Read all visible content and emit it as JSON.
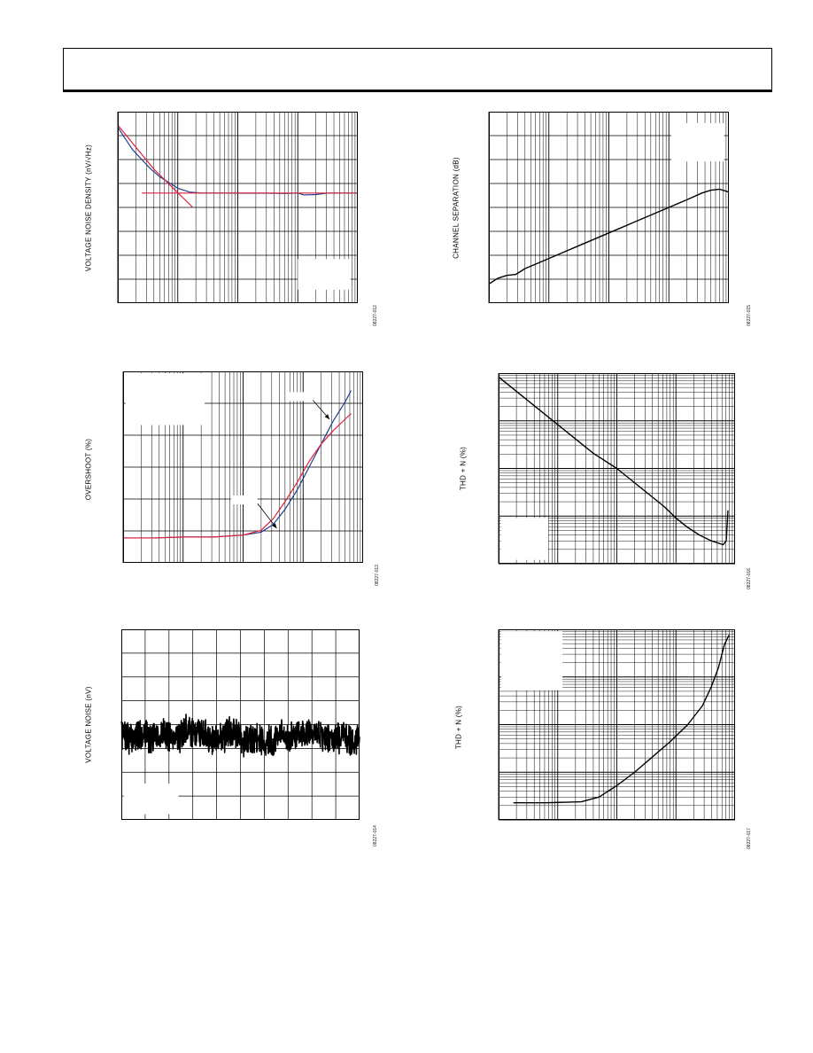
{
  "page": {
    "header_text": ""
  },
  "colors": {
    "blue": "#1f3f8f",
    "red": "#e0203a",
    "black": "#000000",
    "grid": "#000000"
  },
  "charts": {
    "c1": {
      "ylabel": "VOLTAGE NOISE DENSITY (nV/√Hz)",
      "fig_id": "08227-012"
    },
    "c2": {
      "ylabel": "CHANNEL SEPARATION (dB)",
      "fig_id": "08227-015"
    },
    "c3": {
      "ylabel": "OVERSHOOT (%)",
      "fig_id": "08227-013"
    },
    "c4": {
      "ylabel": "THD + N (%)",
      "fig_id": "08227-016"
    },
    "c5": {
      "ylabel": "VOLTAGE NOISE (nV)",
      "fig_id": "08227-014"
    },
    "c6": {
      "ylabel": "THD + N (%)",
      "fig_id": "08227-017"
    }
  },
  "chart_data": [
    {
      "type": "line",
      "id": "c1",
      "xscale": "log",
      "xdecades": 4,
      "ydiv": 8,
      "series": [
        {
          "color": "blue",
          "x": [
            0,
            0.1,
            0.25,
            0.4,
            0.55,
            0.7,
            0.85,
            1.0,
            1.2,
            1.4,
            1.6,
            1.8,
            2.0,
            2.2,
            2.5,
            2.8,
            3.0,
            3.1,
            3.3,
            3.5,
            3.6,
            3.7,
            3.8,
            4.0
          ],
          "y": [
            0.92,
            0.87,
            0.8,
            0.75,
            0.7,
            0.66,
            0.63,
            0.6,
            0.58,
            0.575,
            0.575,
            0.575,
            0.574,
            0.574,
            0.574,
            0.573,
            0.575,
            0.565,
            0.567,
            0.575,
            0.575,
            0.575,
            0.575,
            0.575
          ]
        },
        {
          "color": "red",
          "x": [
            0,
            0.6,
            1.25
          ],
          "y": [
            0.93,
            0.7,
            0.5
          ]
        },
        {
          "color": "red",
          "x": [
            0.4,
            4.0
          ],
          "y": [
            0.575,
            0.575
          ]
        }
      ],
      "legend_box": {
        "x": 0.75,
        "y": 0.07,
        "w": 0.22,
        "h": 0.16
      }
    },
    {
      "type": "line",
      "id": "c2",
      "xscale": "log",
      "xdecades": 4,
      "ydiv": 8,
      "series": [
        {
          "color": "black",
          "x": [
            0,
            0.15,
            0.3,
            0.45,
            0.6,
            0.9,
            1.2,
            1.5,
            1.8,
            2.1,
            2.4,
            2.7,
            3.0,
            3.3,
            3.55,
            3.7,
            3.85,
            4.0
          ],
          "y": [
            0.1,
            0.13,
            0.145,
            0.15,
            0.18,
            0.22,
            0.26,
            0.3,
            0.34,
            0.38,
            0.42,
            0.46,
            0.5,
            0.54,
            0.575,
            0.59,
            0.595,
            0.58
          ]
        }
      ],
      "legend_box": {
        "x": 0.76,
        "y": 0.74,
        "w": 0.22,
        "h": 0.2
      }
    },
    {
      "type": "line",
      "id": "c3",
      "xscale": "log",
      "xdecades": 4,
      "ydiv": 6,
      "series": [
        {
          "color": "blue",
          "x": [
            0,
            0.5,
            1.0,
            1.5,
            2.0,
            2.3,
            2.5,
            2.7,
            2.9,
            3.1,
            3.3,
            3.5,
            3.7,
            3.8
          ],
          "y": [
            0.13,
            0.13,
            0.135,
            0.135,
            0.145,
            0.16,
            0.2,
            0.28,
            0.38,
            0.5,
            0.62,
            0.74,
            0.84,
            0.9
          ]
        },
        {
          "color": "red",
          "x": [
            0,
            0.5,
            1.0,
            1.5,
            2.0,
            2.3,
            2.5,
            2.7,
            2.9,
            3.1,
            3.3,
            3.5,
            3.7,
            3.8
          ],
          "y": [
            0.13,
            0.13,
            0.135,
            0.135,
            0.145,
            0.17,
            0.23,
            0.32,
            0.42,
            0.53,
            0.62,
            0.69,
            0.75,
            0.78
          ]
        }
      ],
      "legend_box": {
        "x": 0.01,
        "y": 0.72,
        "w": 0.33,
        "h": 0.27
      },
      "arrows": [
        {
          "from": [
            0.79,
            0.85
          ],
          "to": [
            0.86,
            0.75
          ]
        },
        {
          "from": [
            0.56,
            0.31
          ],
          "to": [
            0.64,
            0.18
          ]
        }
      ]
    },
    {
      "type": "line",
      "id": "c4",
      "xscale": "log",
      "xdecades": 4,
      "yscale": "log",
      "ydecades": 4,
      "series": [
        {
          "color": "black",
          "x": [
            0,
            0.4,
            0.8,
            1.2,
            1.6,
            2.0,
            2.4,
            2.8,
            3.0,
            3.2,
            3.4,
            3.6,
            3.8,
            3.85,
            3.88
          ],
          "y": [
            0.98,
            0.88,
            0.78,
            0.68,
            0.58,
            0.5,
            0.4,
            0.3,
            0.24,
            0.19,
            0.15,
            0.12,
            0.1,
            0.12,
            0.28
          ]
        }
      ],
      "legend_box": {
        "x": 0.01,
        "y": 0.02,
        "w": 0.2,
        "h": 0.22
      }
    },
    {
      "type": "line",
      "id": "c5",
      "xscale": "linear",
      "xdiv": 10,
      "ydiv": 8,
      "series": [
        {
          "color": "black",
          "noise": true,
          "seed": 7,
          "points": 900,
          "center": 0.45,
          "amp": 0.09
        }
      ],
      "legend_box": {
        "x": 0.01,
        "y": 0.03,
        "w": 0.23,
        "h": 0.16
      }
    },
    {
      "type": "line",
      "id": "c6",
      "xscale": "log",
      "xdecades": 4,
      "yscale": "log",
      "ydecades": 4,
      "series": [
        {
          "color": "black",
          "x": [
            0.25,
            0.8,
            1.4,
            1.7,
            2.0,
            2.3,
            2.6,
            2.9,
            3.2,
            3.45,
            3.6,
            3.72,
            3.82,
            3.9
          ],
          "y": [
            0.09,
            0.09,
            0.095,
            0.12,
            0.18,
            0.25,
            0.33,
            0.41,
            0.5,
            0.6,
            0.7,
            0.8,
            0.92,
            0.97
          ]
        }
      ],
      "legend_box": {
        "x": 0.01,
        "y": 0.68,
        "w": 0.26,
        "h": 0.31
      }
    }
  ]
}
